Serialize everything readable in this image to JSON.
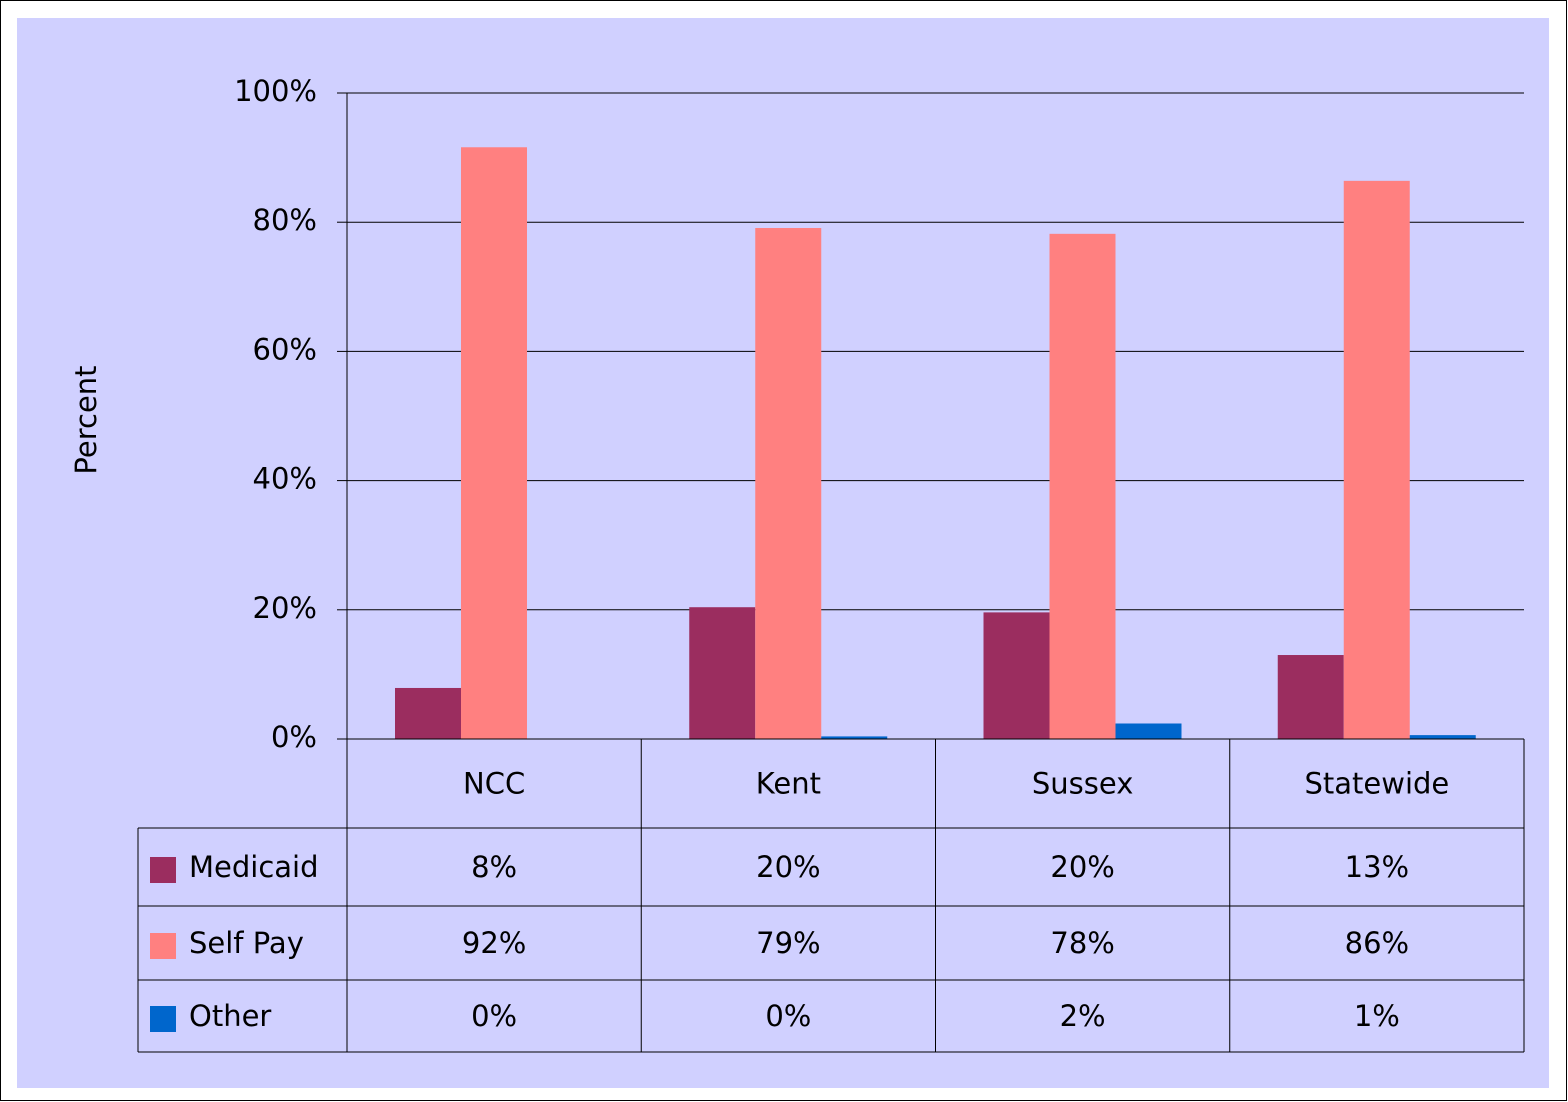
{
  "chart_data": {
    "type": "bar",
    "y_label": "Percent",
    "categories": [
      "NCC",
      "Kent",
      "Sussex",
      "Statewide"
    ],
    "series": [
      {
        "name": "Medicaid",
        "color": "#9b2d5f",
        "values": [
          7.9,
          20.4,
          19.6,
          13.0
        ],
        "value_labels": [
          "8%",
          "20%",
          "20%",
          "13%"
        ]
      },
      {
        "name": "Self Pay",
        "color": "#ff8080",
        "values": [
          91.6,
          79.1,
          78.2,
          86.4
        ],
        "value_labels": [
          "92%",
          "79%",
          "78%",
          "86%"
        ]
      },
      {
        "name": "Other",
        "color": "#0066cc",
        "values": [
          0,
          0.4,
          2.4,
          0.6
        ],
        "value_labels": [
          "0%",
          "0%",
          "2%",
          "1%"
        ]
      }
    ],
    "ylim": [
      0,
      100
    ],
    "yticks": [
      {
        "value": 0,
        "label": "0%"
      },
      {
        "value": 20,
        "label": "20%"
      },
      {
        "value": 40,
        "label": "40%"
      },
      {
        "value": 60,
        "label": "60%"
      },
      {
        "value": 80,
        "label": "80%"
      },
      {
        "value": 100,
        "label": "100%"
      }
    ],
    "grid": true,
    "background": "#d0d0ff"
  }
}
